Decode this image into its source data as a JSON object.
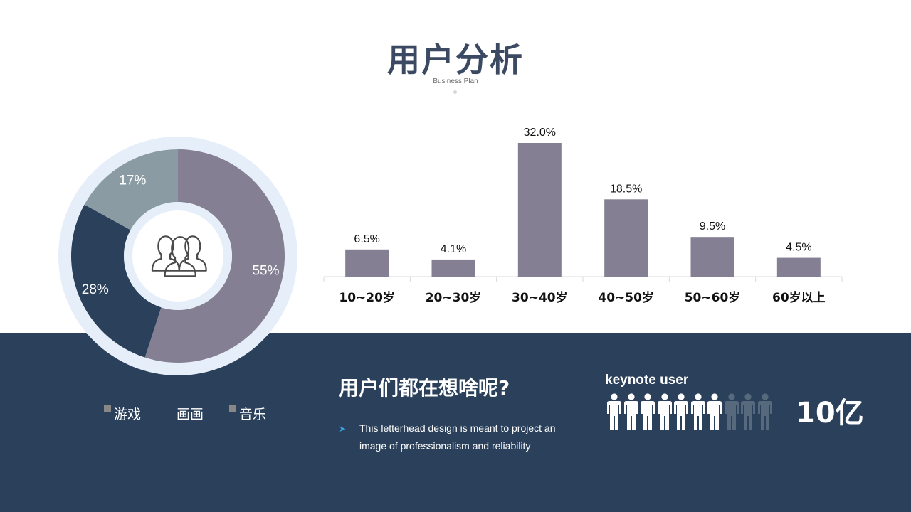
{
  "header": {
    "title": "用户分析",
    "subtitle": "Business Plan"
  },
  "chart_data": [
    {
      "type": "pie",
      "variant": "donut",
      "center_icon": "user-group-icon",
      "slices": [
        {
          "label": "游戏",
          "value": 55,
          "display": "55%",
          "color": "#847f92"
        },
        {
          "label": "画画",
          "value": 28,
          "display": "28%",
          "color": "#2b415b"
        },
        {
          "label": "音乐",
          "value": 17,
          "display": "17%",
          "color": "#8a9ba3"
        }
      ],
      "legend": "bottom",
      "ring_color": "#e6eff9"
    },
    {
      "type": "bar",
      "categories": [
        "10~20岁",
        "20~30岁",
        "30~40岁",
        "40~50岁",
        "50~60岁",
        "60岁以上"
      ],
      "values": [
        6.5,
        4.1,
        32.0,
        18.5,
        9.5,
        4.5
      ],
      "labels": [
        "6.5%",
        "4.1%",
        "32.0%",
        "18.5%",
        "9.5%",
        "4.5%"
      ],
      "bar_color": "#847f92",
      "ylim": [
        0,
        32
      ],
      "grid": false
    }
  ],
  "legend": {
    "items": [
      {
        "label": "游戏",
        "color": "#888888"
      },
      {
        "label": "画画",
        "color": "#2b415b"
      },
      {
        "label": "音乐",
        "color": "#888888"
      }
    ]
  },
  "info": {
    "question": "用户们都在想啥呢?",
    "bullet": "This letterhead design is meant to project an image of professionalism and reliability"
  },
  "keynote": {
    "label": "keynote user",
    "count": "10亿",
    "people_total": 10,
    "people_highlighted": 7,
    "highlight_color": "#ffffff",
    "dim_color": "#56697d"
  }
}
